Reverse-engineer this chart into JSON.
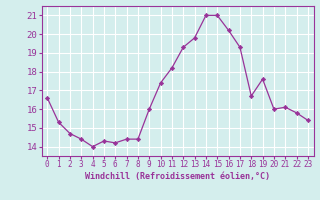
{
  "x": [
    0,
    1,
    2,
    3,
    4,
    5,
    6,
    7,
    8,
    9,
    10,
    11,
    12,
    13,
    14,
    15,
    16,
    17,
    18,
    19,
    20,
    21,
    22,
    23
  ],
  "y": [
    16.6,
    15.3,
    14.7,
    14.4,
    14.0,
    14.3,
    14.2,
    14.4,
    14.4,
    16.0,
    17.4,
    18.2,
    19.3,
    19.8,
    21.0,
    21.0,
    20.2,
    19.3,
    16.7,
    17.6,
    16.0,
    16.1,
    15.8,
    15.4
  ],
  "xlabel": "Windchill (Refroidissement éolien,°C)",
  "ylim": [
    13.5,
    21.5
  ],
  "xlim": [
    -0.5,
    23.5
  ],
  "yticks": [
    14,
    15,
    16,
    17,
    18,
    19,
    20,
    21
  ],
  "xticks": [
    0,
    1,
    2,
    3,
    4,
    5,
    6,
    7,
    8,
    9,
    10,
    11,
    12,
    13,
    14,
    15,
    16,
    17,
    18,
    19,
    20,
    21,
    22,
    23
  ],
  "line_color": "#993399",
  "marker": "D",
  "marker_size": 2.2,
  "bg_color": "#d4eeed",
  "grid_color": "#b8d8d8",
  "tick_color": "#993399",
  "label_color": "#993399",
  "xlabel_fontsize": 6.0,
  "ytick_fontsize": 6.5,
  "xtick_fontsize": 5.5
}
